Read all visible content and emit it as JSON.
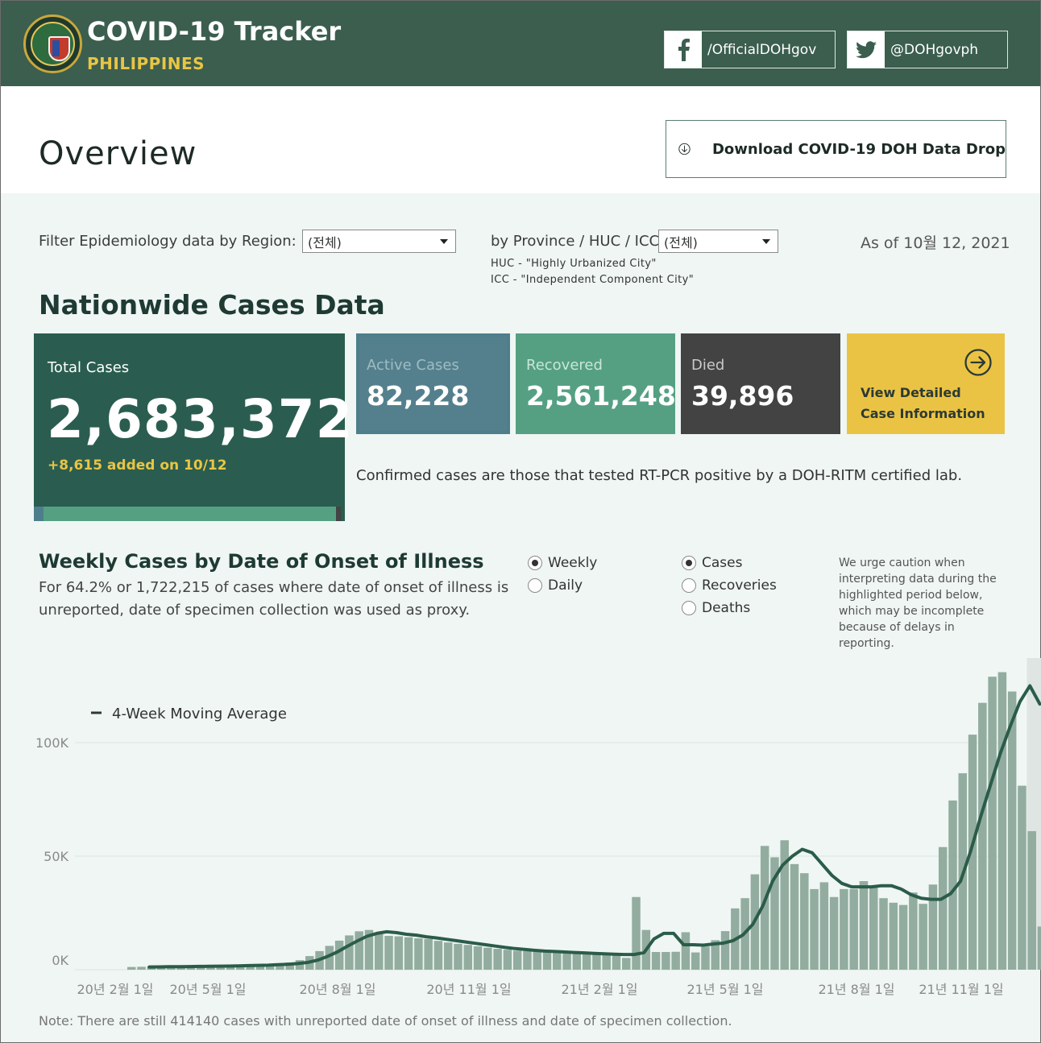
{
  "header": {
    "title": "COVID-19 Tracker",
    "subtitle": "PHILIPPINES",
    "facebook": "/OfficialDOHgov",
    "twitter": "@DOHgovph"
  },
  "overview": {
    "title": "Overview",
    "download_label": "Download COVID-19 DOH Data Drop"
  },
  "filters": {
    "region_label": "Filter Epidemiology data by Region:",
    "region_value": "(전체)",
    "province_label": "by Province / HUC / ICC:",
    "province_value": "(전체)",
    "huc_note": "HUC - \"Highly Urbanized City\"",
    "icc_note": "ICC - \"Independent Component City\"",
    "as_of": "As of 10월 12, 2021"
  },
  "nationwide": {
    "title": "Nationwide Cases Data",
    "total_label": "Total Cases",
    "total_value": "2,683,372",
    "total_added": "+8,615 added on 10/12",
    "active_label": "Active Cases",
    "active_value": "82,228",
    "recovered_label": "Recovered",
    "recovered_value": "2,561,248",
    "died_label": "Died",
    "died_value": "39,896",
    "detail_line1": "View Detailed",
    "detail_line2": "Case Information",
    "confirmed_note": "Confirmed cases are those that tested RT-PCR positive by a DOH-RITM certified lab.",
    "composition": {
      "active": 0.031,
      "recovered": 0.954,
      "died": 0.015
    },
    "colors": {
      "total": "#2a5d4f",
      "active": "#4e7e8c",
      "recovered": "#55a083",
      "died": "#434343",
      "detail": "#ebc344"
    }
  },
  "weekly": {
    "title": "Weekly Cases by Date of Onset of Illness",
    "description": "For 64.2% or 1,722,215 of cases where date of onset of illness is unreported, date of specimen collection was used as proxy.",
    "period_options": [
      {
        "label": "Weekly",
        "selected": true
      },
      {
        "label": "Daily",
        "selected": false
      }
    ],
    "measure_options": [
      {
        "label": "Cases",
        "selected": true
      },
      {
        "label": "Recoveries",
        "selected": false
      },
      {
        "label": "Deaths",
        "selected": false
      }
    ],
    "caution": "We urge caution when interpreting data during the highlighted period below, which may be incomplete because of delays in reporting.",
    "footnote": "Note: There are still 414140 cases with unreported date of onset of illness and date of specimen collection."
  },
  "chart_data": {
    "type": "bar",
    "legend": "4-Week Moving Average",
    "legend_position": "top-left",
    "y_ticks": [
      "100K",
      "50K",
      "0K"
    ],
    "y_tick_values": [
      100000,
      50000,
      0
    ],
    "x_ticks": [
      "20년 2월 1일",
      "20년 5월 1일",
      "20년 8월 1일",
      "20년 11월 1일",
      "21년 2월 1일",
      "21년 5월 1일",
      "21년 8월 1일",
      "21년 11월 1일"
    ],
    "ylim": [
      0,
      130000
    ],
    "grid": true,
    "bar_color": "#92ad9f",
    "line_color": "#2b5c4a",
    "highlight_color": "#dfe5e3",
    "first_week": "2020-02-02",
    "weekly_cases": [
      1200,
      1300,
      1300,
      1400,
      1400,
      1500,
      1500,
      1600,
      1700,
      1800,
      1900,
      2000,
      2100,
      2300,
      2500,
      2700,
      3200,
      4200,
      6000,
      8200,
      10500,
      12800,
      15100,
      16900,
      17500,
      16400,
      14900,
      14700,
      14300,
      13800,
      13500,
      12700,
      12000,
      11400,
      10900,
      10300,
      9700,
      9200,
      8800,
      8400,
      8200,
      8100,
      7900,
      7700,
      7500,
      7400,
      7200,
      6900,
      6800,
      6700,
      5200,
      32000,
      17500,
      7800,
      7800,
      7900,
      16500,
      7600,
      10200,
      13000,
      17000,
      27000,
      31500,
      42000,
      54500,
      49500,
      57000,
      46500,
      42500,
      35500,
      38500,
      32000,
      35500,
      35500,
      39000,
      37000,
      31500,
      29500,
      28500,
      34000,
      29000,
      37500,
      54000,
      74500,
      86500,
      103500,
      117500,
      129000,
      131000,
      122500,
      81000,
      61000,
      19000
    ],
    "moving_average": [
      1200,
      1250,
      1300,
      1350,
      1400,
      1450,
      1500,
      1550,
      1600,
      1700,
      1800,
      1900,
      2000,
      2200,
      2400,
      2700,
      3200,
      4200,
      5800,
      7800,
      10300,
      12600,
      14700,
      16000,
      16700,
      16300,
      15600,
      15200,
      14500,
      14000,
      13400,
      12800,
      12200,
      11600,
      11000,
      10400,
      9800,
      9300,
      8900,
      8500,
      8200,
      8000,
      7800,
      7600,
      7400,
      7200,
      7000,
      6800,
      6700,
      6700,
      7500,
      13500,
      16000,
      16000,
      11000,
      11000,
      10800,
      11300,
      11700,
      12800,
      15300,
      20000,
      28000,
      39000,
      46000,
      50000,
      53000,
      51500,
      46500,
      41500,
      38000,
      36500,
      36500,
      36500,
      37000,
      37000,
      35500,
      33000,
      31500,
      31000,
      31000,
      33500,
      39000,
      52000,
      67000,
      81000,
      95000,
      107000,
      118000,
      125000,
      117000
    ]
  }
}
